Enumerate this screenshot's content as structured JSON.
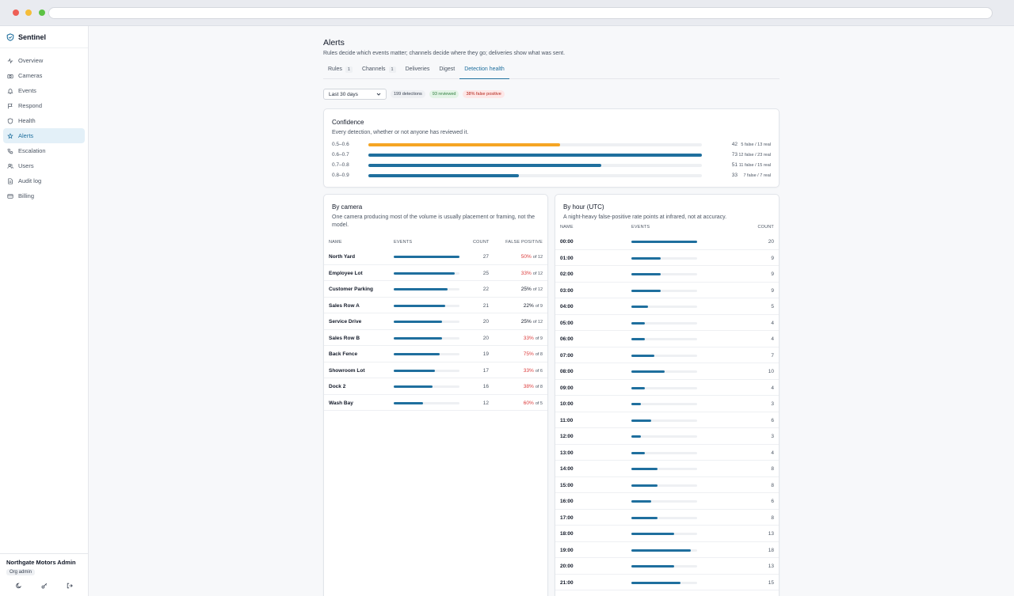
{
  "app": {
    "name": "Sentinel"
  },
  "nav": [
    {
      "label": "Overview",
      "icon": "activity-icon"
    },
    {
      "label": "Cameras",
      "icon": "camera-icon"
    },
    {
      "label": "Events",
      "icon": "bell-icon"
    },
    {
      "label": "Respond",
      "icon": "flag-icon"
    },
    {
      "label": "Health",
      "icon": "shield-icon"
    },
    {
      "label": "Alerts",
      "icon": "alert-icon",
      "active": true
    },
    {
      "label": "Escalation",
      "icon": "phone-icon"
    },
    {
      "label": "Users",
      "icon": "users-icon"
    },
    {
      "label": "Audit log",
      "icon": "file-icon"
    },
    {
      "label": "Billing",
      "icon": "card-icon"
    }
  ],
  "user": {
    "org": "Northgate Motors Admin",
    "role": "Org admin"
  },
  "page": {
    "title": "Alerts",
    "subtitle": "Rules decide which events matter; channels decide where they go; deliveries show what was sent."
  },
  "tabs": [
    {
      "label": "Rules",
      "count": "1"
    },
    {
      "label": "Channels",
      "count": "1"
    },
    {
      "label": "Deliveries"
    },
    {
      "label": "Digest"
    },
    {
      "label": "Detection health",
      "active": true
    }
  ],
  "filters": {
    "range": "Last 30 days",
    "detections": "199 detections",
    "reviewed": "93 reviewed",
    "false_positive": "38% false positive"
  },
  "confidence": {
    "title": "Confidence",
    "desc": "Every detection, whether or not anyone has reviewed it.",
    "max": 73,
    "rows": [
      {
        "range": "0.5–0.6",
        "count": 42,
        "note": "5 false / 13 real",
        "color": "#f5a524"
      },
      {
        "range": "0.6–0.7",
        "count": 73,
        "note": "12 false / 23 real",
        "color": "#1f6f9e"
      },
      {
        "range": "0.7–0.8",
        "count": 51,
        "note": "11 false / 15 real",
        "color": "#1f6f9e"
      },
      {
        "range": "0.8–0.9",
        "count": 33,
        "note": "7 false / 7 real",
        "color": "#1f6f9e"
      }
    ]
  },
  "by_camera": {
    "title": "By camera",
    "desc": "One camera producing most of the volume is usually placement or framing, not the model.",
    "headers": {
      "name": "NAME",
      "events": "EVENTS",
      "count": "COUNT",
      "fp": "FALSE POSITIVE"
    },
    "max": 27,
    "rows": [
      {
        "name": "North Yard",
        "count": 27,
        "fp": "50%",
        "of": "of 12",
        "alert": true
      },
      {
        "name": "Employee Lot",
        "count": 25,
        "fp": "33%",
        "of": "of 12",
        "alert": true
      },
      {
        "name": "Customer Parking",
        "count": 22,
        "fp": "25%",
        "of": "of 12",
        "alert": false
      },
      {
        "name": "Sales Row A",
        "count": 21,
        "fp": "22%",
        "of": "of 9",
        "alert": false
      },
      {
        "name": "Service Drive",
        "count": 20,
        "fp": "25%",
        "of": "of 12",
        "alert": false
      },
      {
        "name": "Sales Row B",
        "count": 20,
        "fp": "33%",
        "of": "of 9",
        "alert": true
      },
      {
        "name": "Back Fence",
        "count": 19,
        "fp": "75%",
        "of": "of 8",
        "alert": true
      },
      {
        "name": "Showroom Lot",
        "count": 17,
        "fp": "33%",
        "of": "of 6",
        "alert": true
      },
      {
        "name": "Dock 2",
        "count": 16,
        "fp": "38%",
        "of": "of 8",
        "alert": true
      },
      {
        "name": "Wash Bay",
        "count": 12,
        "fp": "60%",
        "of": "of 5",
        "alert": true
      }
    ]
  },
  "by_hour": {
    "title": "By hour (UTC)",
    "desc": "A night-heavy false-positive rate points at infrared, not at accuracy.",
    "headers": {
      "name": "NAME",
      "events": "EVENTS",
      "count": "COUNT"
    },
    "max": 20,
    "rows": [
      {
        "hour": "00:00",
        "count": 20
      },
      {
        "hour": "01:00",
        "count": 9
      },
      {
        "hour": "02:00",
        "count": 9
      },
      {
        "hour": "03:00",
        "count": 9
      },
      {
        "hour": "04:00",
        "count": 5
      },
      {
        "hour": "05:00",
        "count": 4
      },
      {
        "hour": "06:00",
        "count": 4
      },
      {
        "hour": "07:00",
        "count": 7
      },
      {
        "hour": "08:00",
        "count": 10
      },
      {
        "hour": "09:00",
        "count": 4
      },
      {
        "hour": "10:00",
        "count": 3
      },
      {
        "hour": "11:00",
        "count": 6
      },
      {
        "hour": "12:00",
        "count": 3
      },
      {
        "hour": "13:00",
        "count": 4
      },
      {
        "hour": "14:00",
        "count": 8
      },
      {
        "hour": "15:00",
        "count": 8
      },
      {
        "hour": "16:00",
        "count": 6
      },
      {
        "hour": "17:00",
        "count": 8
      },
      {
        "hour": "18:00",
        "count": 13
      },
      {
        "hour": "19:00",
        "count": 18
      },
      {
        "hour": "20:00",
        "count": 13
      },
      {
        "hour": "21:00",
        "count": 15
      }
    ]
  },
  "colors": {
    "accent": "#1f6f9e",
    "warn": "#f5a524",
    "danger": "#dc3c3c"
  }
}
